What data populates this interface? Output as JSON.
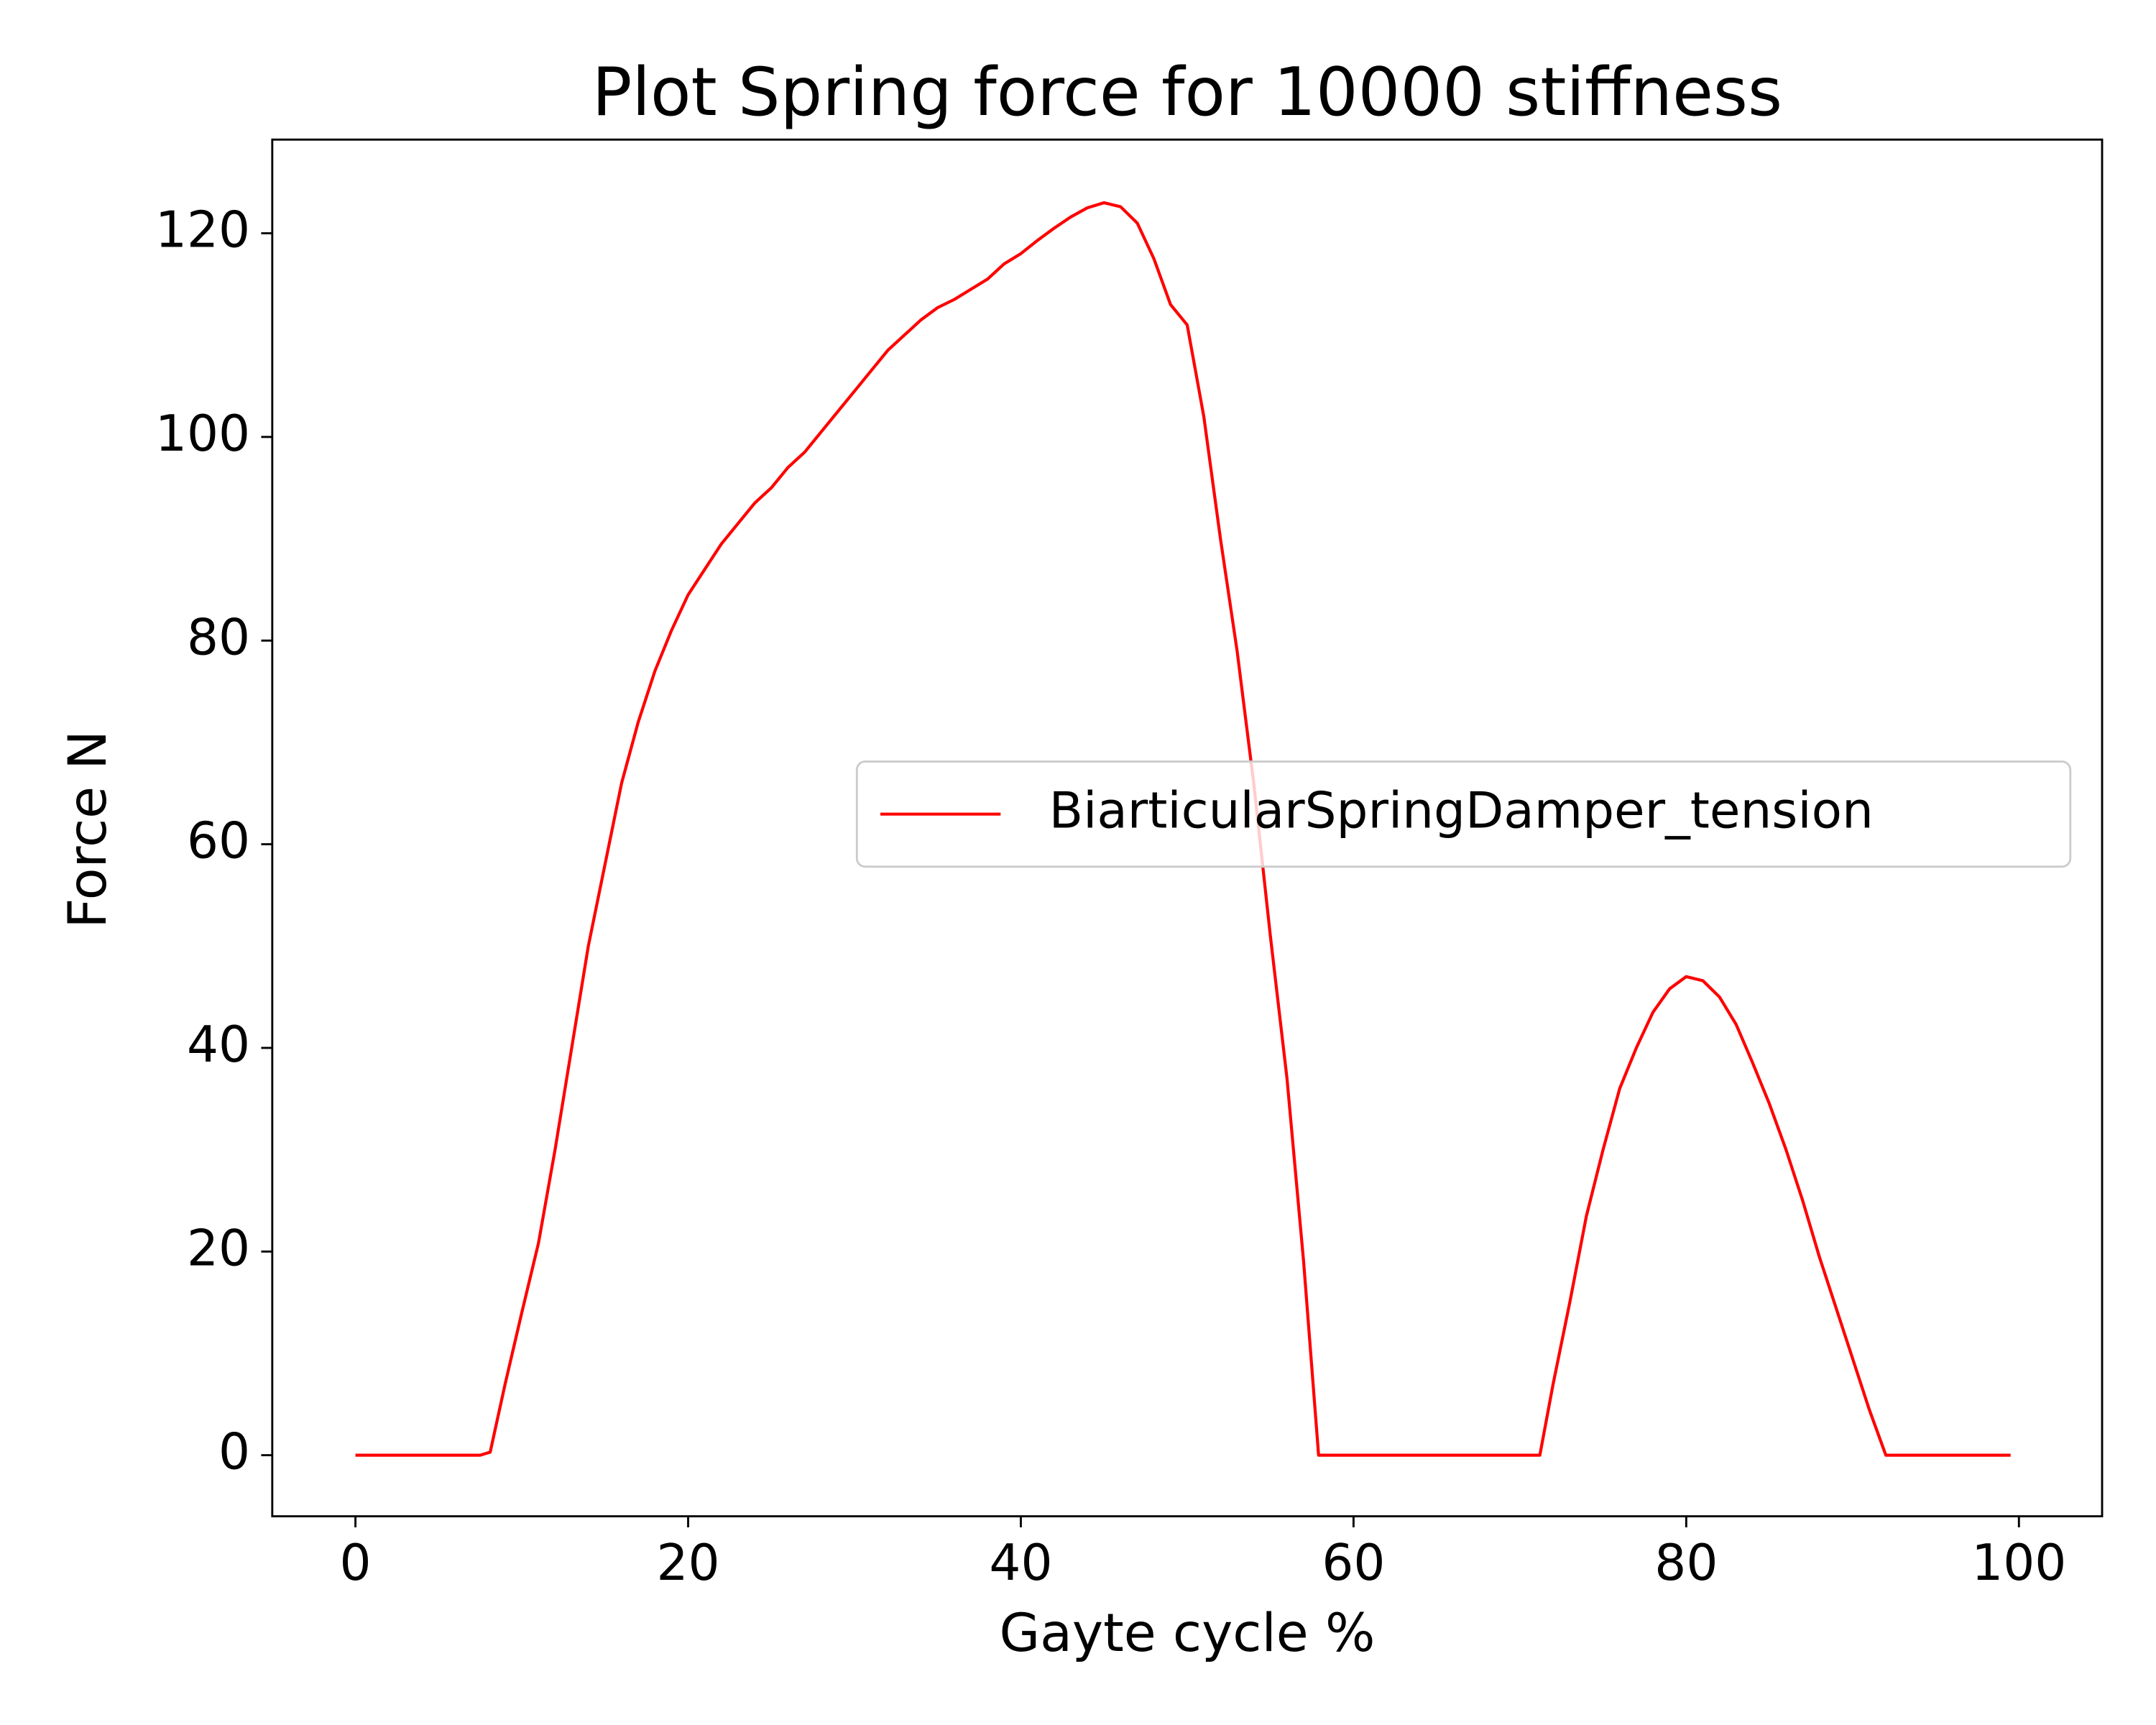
{
  "chart_data": {
    "type": "line",
    "title": "Plot Spring force for 10000 stiffness",
    "x_label": "Gayte cycle %",
    "y_label": "Force N",
    "x": [
      0,
      7.5,
      8.1,
      9,
      10,
      11,
      12,
      13,
      14,
      15,
      16,
      17,
      18,
      19,
      20,
      21,
      22,
      23,
      24,
      25,
      26,
      27,
      28,
      29,
      30,
      31,
      32,
      33,
      34,
      35,
      36,
      37,
      38,
      39,
      40,
      41,
      42,
      43,
      44,
      45,
      46,
      47,
      48,
      49,
      50,
      51,
      52,
      53,
      54,
      55,
      56,
      57,
      57.9,
      60,
      71.2,
      72,
      73,
      74,
      75,
      76,
      77,
      78,
      79,
      80,
      81,
      82,
      83,
      84,
      85,
      86,
      87,
      88,
      89,
      90,
      91,
      92,
      99.5
    ],
    "series": [
      {
        "name": "BiarticularSpringDamper_tension",
        "color": "#ff0000",
        "values": [
          0,
          0,
          0.3,
          7,
          14,
          20.8,
          30,
          40,
          50,
          58,
          66,
          72,
          77,
          81,
          84.5,
          87,
          89.5,
          91.5,
          93.5,
          95,
          97,
          98.5,
          100.5,
          102.5,
          104.5,
          106.5,
          108.5,
          110,
          111.5,
          112.7,
          113.5,
          114.5,
          115.5,
          117,
          118,
          119.3,
          120.5,
          121.6,
          122.5,
          123,
          122.6,
          121,
          117.5,
          113,
          111,
          102,
          90,
          79,
          66,
          51,
          37,
          19,
          0,
          0,
          0,
          7,
          15,
          23.5,
          30,
          36,
          40,
          43.5,
          45.8,
          47,
          46.6,
          45,
          42.3,
          38.5,
          34.5,
          30,
          25,
          19.5,
          14.5,
          9.5,
          4.5,
          0,
          0
        ]
      }
    ],
    "xlim": [
      -5,
      105
    ],
    "ylim": [
      -6,
      129.2
    ],
    "xticks": [
      0,
      20,
      40,
      60,
      80,
      100
    ],
    "yticks": [
      0,
      20,
      40,
      60,
      80,
      100,
      120
    ],
    "grid": false,
    "legend": "center right"
  }
}
